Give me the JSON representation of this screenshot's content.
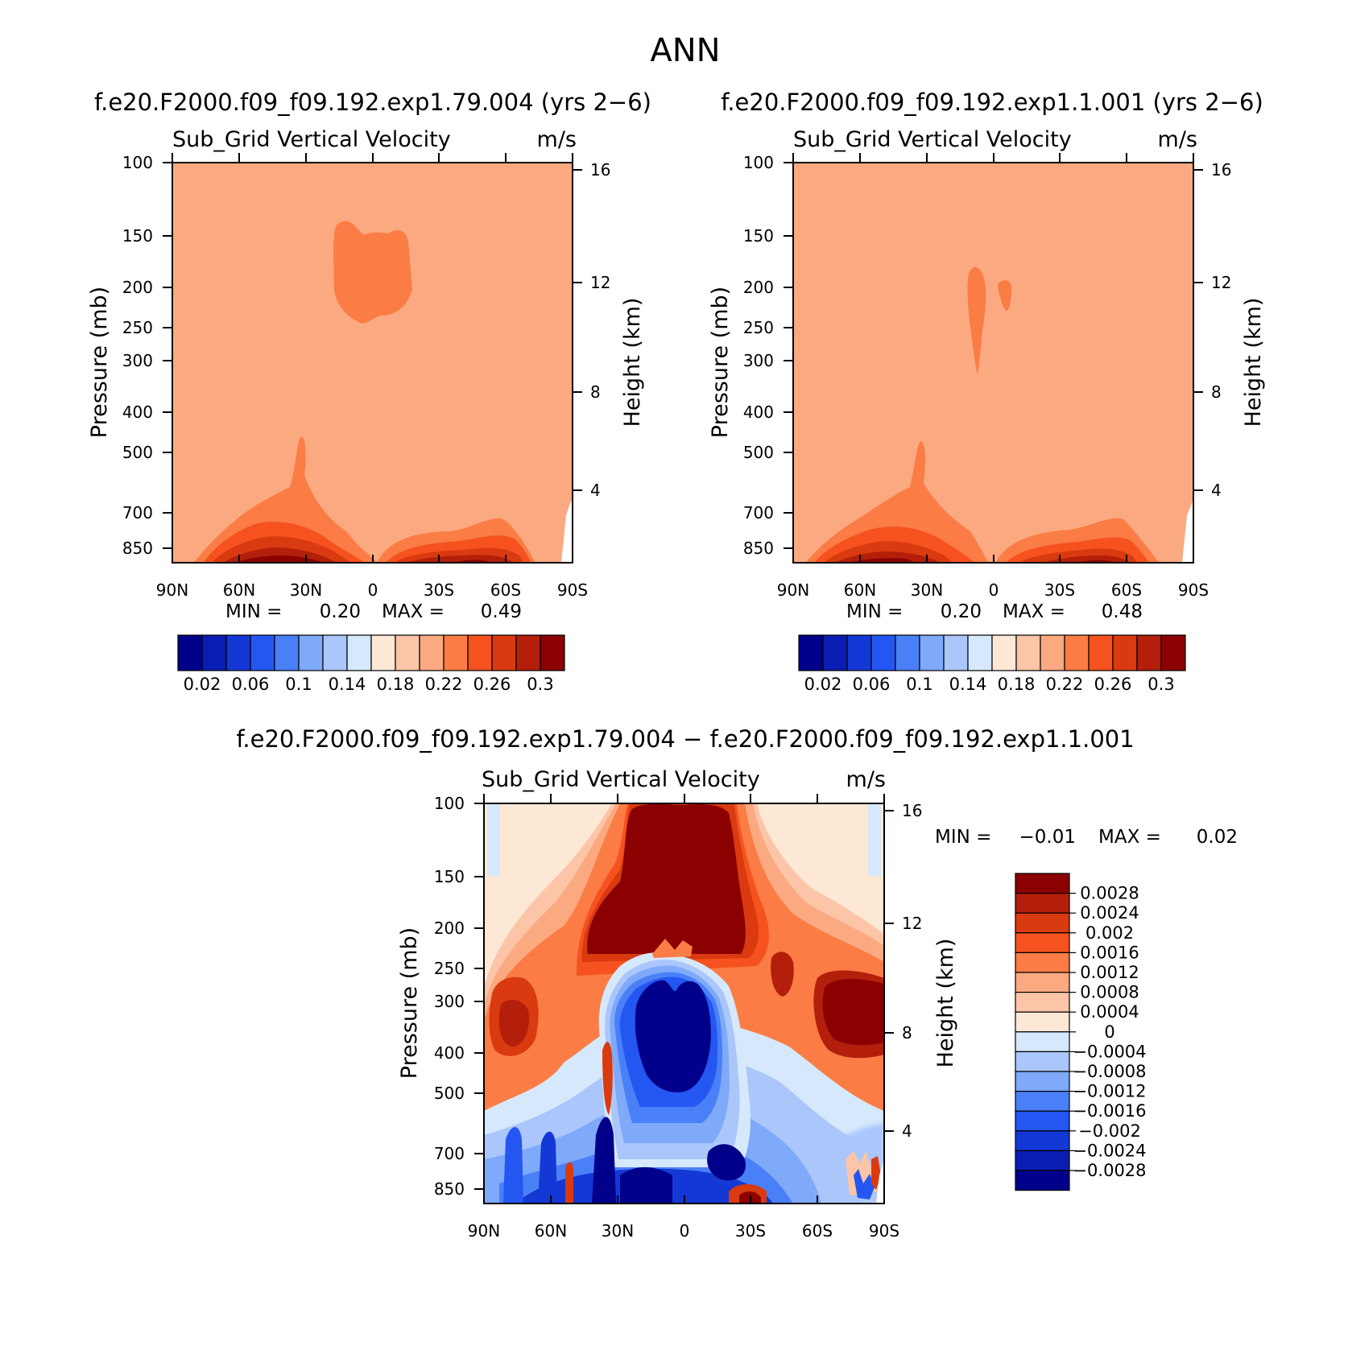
{
  "figure": {
    "season": "ANN",
    "variable": "Sub_Grid Vertical Velocity",
    "units": "m/s",
    "ylabel_left": "Pressure (mb)",
    "ylabel_right": "Height (km)"
  },
  "chart_data": [
    {
      "type": "heatmap",
      "title": "f.e20.F2000.f09_f09.192.exp1.79.004 (yrs 2−6)",
      "left_label": "Sub_Grid Vertical Velocity",
      "right_label": "m/s",
      "x_ticks": [
        "90N",
        "60N",
        "30N",
        "0",
        "30S",
        "60S",
        "90S"
      ],
      "y_ticks_pressure": [
        100,
        150,
        200,
        250,
        300,
        400,
        500,
        700,
        850
      ],
      "y_ticks_height": [
        16,
        12,
        8,
        4
      ],
      "min_label": "MIN =",
      "min_value": "0.20",
      "max_label": "MAX =",
      "max_value": "0.49",
      "colorbar_levels": [
        0.02,
        0.04,
        0.06,
        0.08,
        0.1,
        0.12,
        0.14,
        0.16,
        0.18,
        0.2,
        0.22,
        0.24,
        0.26,
        0.28,
        0.3
      ],
      "colorbar_labels": [
        "0.02",
        "0.06",
        "0.1",
        "0.14",
        "0.18",
        "0.22",
        "0.26",
        "0.3"
      ],
      "colors": [
        "#00008b",
        "#0a1db2",
        "#1438d6",
        "#2456f2",
        "#4a80f7",
        "#7fa9f9",
        "#aac6fb",
        "#d6e8fb",
        "#fde8d6",
        "#fcc5a8",
        "#fba980",
        "#fb7c45",
        "#f5521f",
        "#d93a0f",
        "#b31f0a",
        "#8b0000"
      ],
      "background_value": 0.2,
      "features": "uniform ~0.2 field; localized maximum near 150-250 mb at 10S-10N; strong values (>0.3) in lowest levels near 50N-35N and 40S-60S"
    },
    {
      "type": "heatmap",
      "title": "f.e20.F2000.f09_f09.192.exp1.1.001 (yrs 2−6)",
      "left_label": "Sub_Grid Vertical Velocity",
      "right_label": "m/s",
      "x_ticks": [
        "90N",
        "60N",
        "30N",
        "0",
        "30S",
        "60S",
        "90S"
      ],
      "y_ticks_pressure": [
        100,
        150,
        200,
        250,
        300,
        400,
        500,
        700,
        850
      ],
      "y_ticks_height": [
        16,
        12,
        8,
        4
      ],
      "min_label": "MIN =",
      "min_value": "0.20",
      "max_label": "MAX =",
      "max_value": "0.48",
      "colorbar_levels": [
        0.02,
        0.04,
        0.06,
        0.08,
        0.1,
        0.12,
        0.14,
        0.16,
        0.18,
        0.2,
        0.22,
        0.24,
        0.26,
        0.28,
        0.3
      ],
      "colorbar_labels": [
        "0.02",
        "0.06",
        "0.1",
        "0.14",
        "0.18",
        "0.22",
        "0.26",
        "0.3"
      ],
      "colors": [
        "#00008b",
        "#0a1db2",
        "#1438d6",
        "#2456f2",
        "#4a80f7",
        "#7fa9f9",
        "#aac6fb",
        "#d6e8fb",
        "#fde8d6",
        "#fcc5a8",
        "#fba980",
        "#fb7c45",
        "#f5521f",
        "#d93a0f",
        "#b31f0a",
        "#8b0000"
      ],
      "background_value": 0.2,
      "features": "uniform ~0.2 field; small narrow maxima near 200 mb around 5N and 5S; strong values in lowest levels near 45N-35N and 45S-60S"
    },
    {
      "type": "heatmap",
      "title": "f.e20.F2000.f09_f09.192.exp1.79.004 − f.e20.F2000.f09_f09.192.exp1.1.001",
      "left_label": "Sub_Grid Vertical Velocity",
      "right_label": "m/s",
      "x_ticks": [
        "90N",
        "60N",
        "30N",
        "0",
        "30S",
        "60S",
        "90S"
      ],
      "y_ticks_pressure": [
        100,
        150,
        200,
        250,
        300,
        400,
        500,
        700,
        850
      ],
      "y_ticks_height": [
        16,
        12,
        8,
        4
      ],
      "min_label": "MIN =",
      "min_value": "−0.01",
      "max_label": "MAX =",
      "max_value": "0.02",
      "colorbar_levels": [
        -0.0028,
        -0.0024,
        -0.002,
        -0.0016,
        -0.0012,
        -0.0008,
        -0.0004,
        0,
        0.0004,
        0.0008,
        0.0012,
        0.0016,
        0.002,
        0.0024,
        0.0028
      ],
      "colorbar_labels": [
        "0.0028",
        "0.0024",
        "0.002",
        "0.0016",
        "0.0012",
        "0.0008",
        "0.0004",
        "0",
        "−0.0004",
        "−0.0008",
        "−0.0012",
        "−0.0016",
        "−0.002",
        "−0.0024",
        "−0.0028"
      ],
      "colors": [
        "#8b0000",
        "#b31f0a",
        "#d93a0f",
        "#f5521f",
        "#fb7c45",
        "#fba980",
        "#fcc5a8",
        "#fde8d6",
        "#d6e8fb",
        "#aac6fb",
        "#7fa9f9",
        "#4a80f7",
        "#2456f2",
        "#1438d6",
        "#0a1db2",
        "#00008b"
      ],
      "features": "large positive (>0.0028) region 100-250 mb between 20N and 25S; large negative (<-0.0028) region 250-500 mb between 20N and 15S; positive maxima 300-400 mb near 75N and 70S-85S; mixed small-scale negatives in lower troposphere"
    }
  ]
}
